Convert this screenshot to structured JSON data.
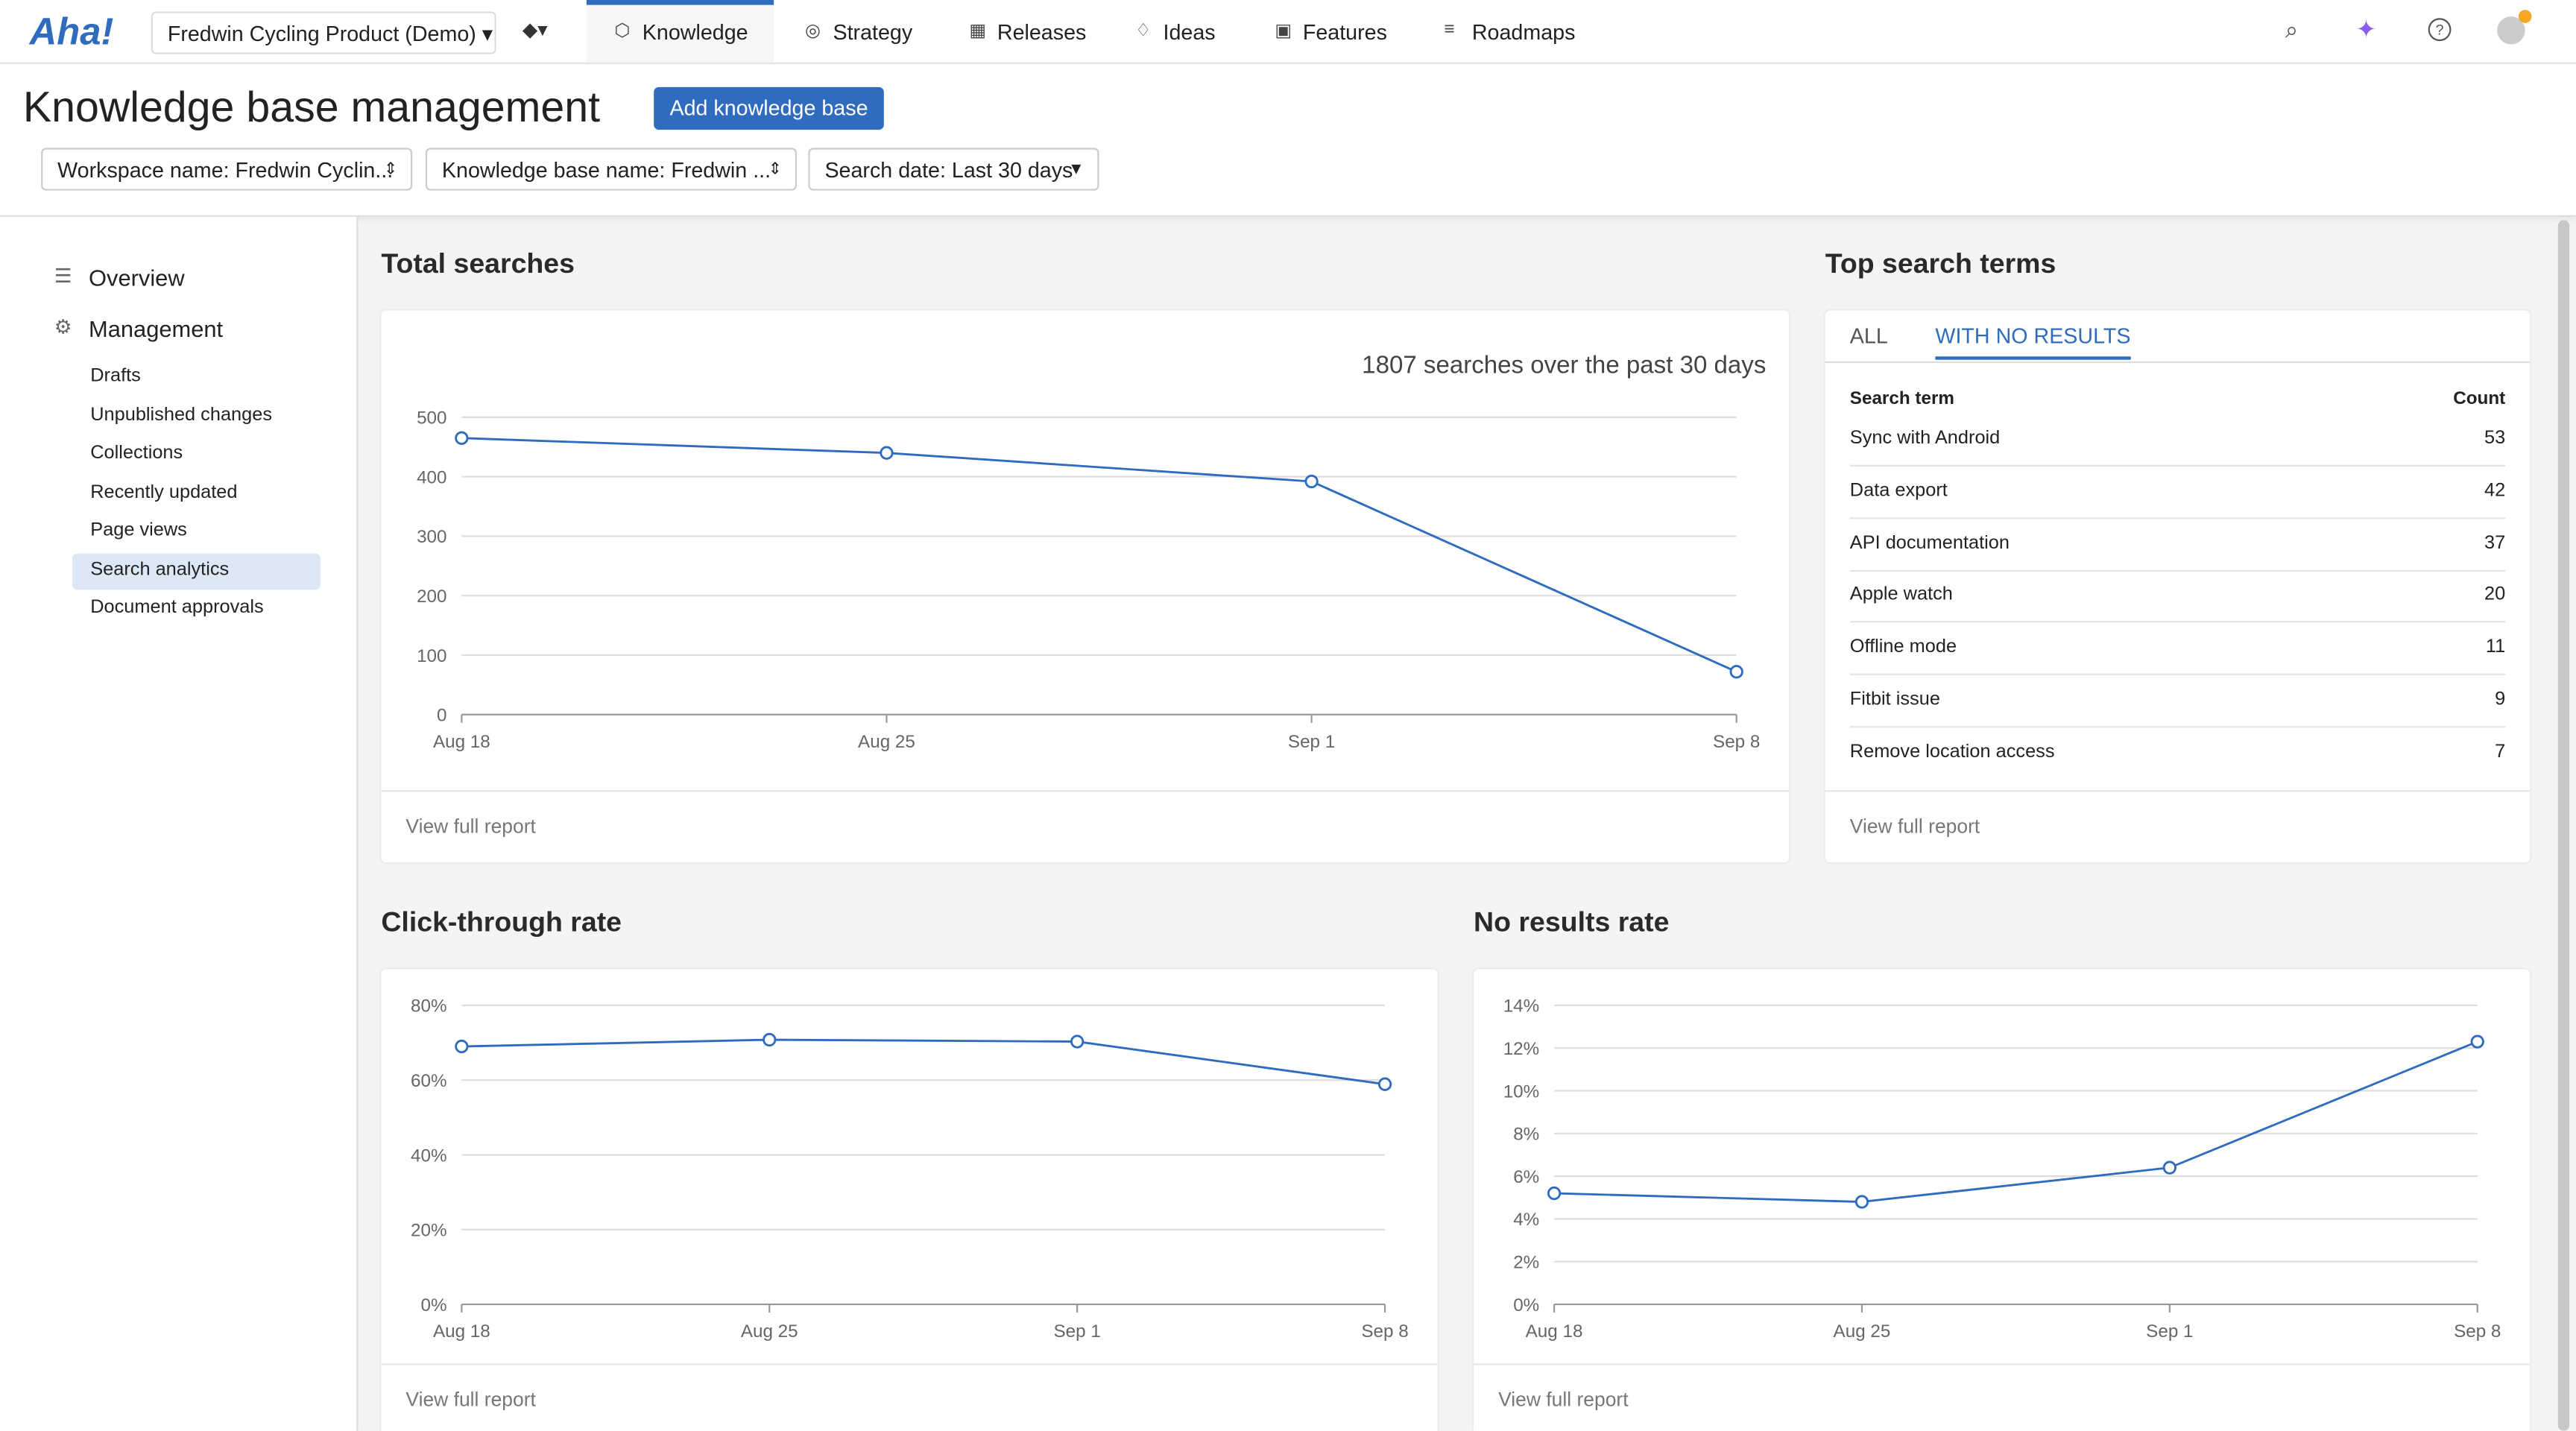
{
  "nav": {
    "logo": "Aha!",
    "product": "Fredwin Cycling Product (Demo)",
    "tabs": [
      "Knowledge",
      "Strategy",
      "Releases",
      "Ideas",
      "Features",
      "Roadmaps"
    ]
  },
  "header": {
    "title": "Knowledge base management",
    "button": "Add knowledge base",
    "filters": [
      "Workspace name: Fredwin Cyclin...",
      "Knowledge base name: Fredwin ...",
      "Search date: Last 30 days"
    ]
  },
  "sidebar": {
    "sections": [
      "Overview",
      "Management"
    ],
    "items": [
      "Drafts",
      "Unpublished changes",
      "Collections",
      "Recently updated",
      "Page views",
      "Search analytics",
      "Document approvals"
    ]
  },
  "chart_data": [
    {
      "type": "line",
      "title": "Total searches",
      "subtitle": "1807 searches over the past 30 days",
      "categories": [
        "Aug 18",
        "Aug 25",
        "Sep 1",
        "Sep 8"
      ],
      "values": [
        465,
        440,
        392,
        72
      ],
      "color": "#2f6cbf",
      "ylim": [
        0,
        500
      ],
      "yticks": [
        0,
        100,
        200,
        300,
        400,
        500
      ],
      "grid": true,
      "footer": "View full report"
    },
    {
      "type": "line",
      "title": "Click-through rate",
      "categories": [
        "Aug 18",
        "Aug 25",
        "Sep 1",
        "Sep 8"
      ],
      "values": [
        69,
        70.8,
        70.3,
        58.9
      ],
      "color": "#2f6cbf",
      "ylim": [
        0,
        80
      ],
      "yticks": [
        {
          "value": 0,
          "label": "0%"
        },
        {
          "value": 20,
          "label": "20%"
        },
        {
          "value": 40,
          "label": "40%"
        },
        {
          "value": 60,
          "label": "60%"
        },
        {
          "value": 80,
          "label": "80%"
        }
      ],
      "grid": true,
      "footer": "View full report"
    },
    {
      "type": "line",
      "title": "No results rate",
      "categories": [
        "Aug 18",
        "Aug 25",
        "Sep 1",
        "Sep 8"
      ],
      "values": [
        5.2,
        4.8,
        6.4,
        12.3
      ],
      "color": "#2f6cbf",
      "ylim": [
        0,
        14
      ],
      "yticks": [
        {
          "value": 0,
          "label": "0%"
        },
        {
          "value": 2,
          "label": "2%"
        },
        {
          "value": 4,
          "label": "4%"
        },
        {
          "value": 6,
          "label": "6%"
        },
        {
          "value": 8,
          "label": "8%"
        },
        {
          "value": 10,
          "label": "10%"
        },
        {
          "value": 12,
          "label": "12%"
        },
        {
          "value": 14,
          "label": "14%"
        }
      ],
      "grid": true,
      "footer": "View full report"
    }
  ],
  "top_search_terms": {
    "title": "Top search terms",
    "tabs": [
      "ALL",
      "WITH NO RESULTS"
    ],
    "columns": [
      "Search term",
      "Count"
    ],
    "rows": [
      [
        "Sync with Android",
        "53"
      ],
      [
        "Data export",
        "42"
      ],
      [
        "API documentation",
        "37"
      ],
      [
        "Apple watch",
        "20"
      ],
      [
        "Offline mode",
        "11"
      ],
      [
        "Fitbit issue",
        "9"
      ],
      [
        "Remove location access",
        "7"
      ]
    ],
    "footer": "View full report"
  }
}
